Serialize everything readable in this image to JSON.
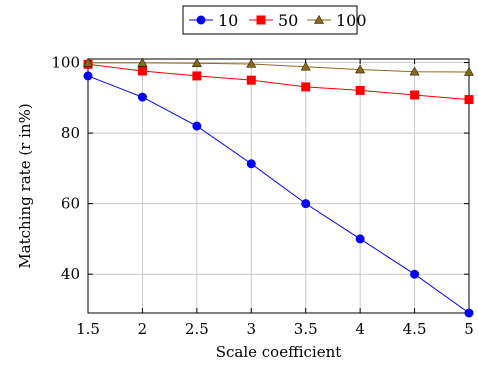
{
  "chart_data": {
    "type": "line",
    "xlabel": "Scale coefficient",
    "ylabel": "Matching rate (r in%)",
    "xlim": [
      1.5,
      5
    ],
    "ylim": [
      29,
      101
    ],
    "x_ticks": [
      1.5,
      2,
      2.5,
      3,
      3.5,
      4,
      4.5,
      5
    ],
    "x_tick_labels": [
      "1.5",
      "2",
      "2.5",
      "3",
      "3.5",
      "4",
      "4.5",
      "5"
    ],
    "y_ticks": [
      40,
      60,
      80,
      100
    ],
    "y_tick_labels": [
      "40",
      "60",
      "80",
      "100"
    ],
    "grid": true,
    "legend_position": "top-center",
    "x": [
      1.5,
      2,
      2.5,
      3,
      3.5,
      4,
      4.5,
      5
    ],
    "series": [
      {
        "name": "10",
        "color": "#0000ff",
        "marker": "circle",
        "values": [
          96.2,
          90.2,
          82.0,
          71.3,
          60.0,
          50.0,
          40.0,
          29.0
        ]
      },
      {
        "name": "50",
        "color": "#ff0000",
        "marker": "square",
        "values": [
          99.5,
          97.6,
          96.2,
          95.0,
          93.1,
          92.1,
          90.8,
          89.5
        ]
      },
      {
        "name": "100",
        "color": "#8b6914",
        "marker": "triangle",
        "values": [
          99.9,
          99.9,
          99.8,
          99.6,
          98.8,
          98.0,
          97.4,
          97.3
        ]
      }
    ]
  }
}
